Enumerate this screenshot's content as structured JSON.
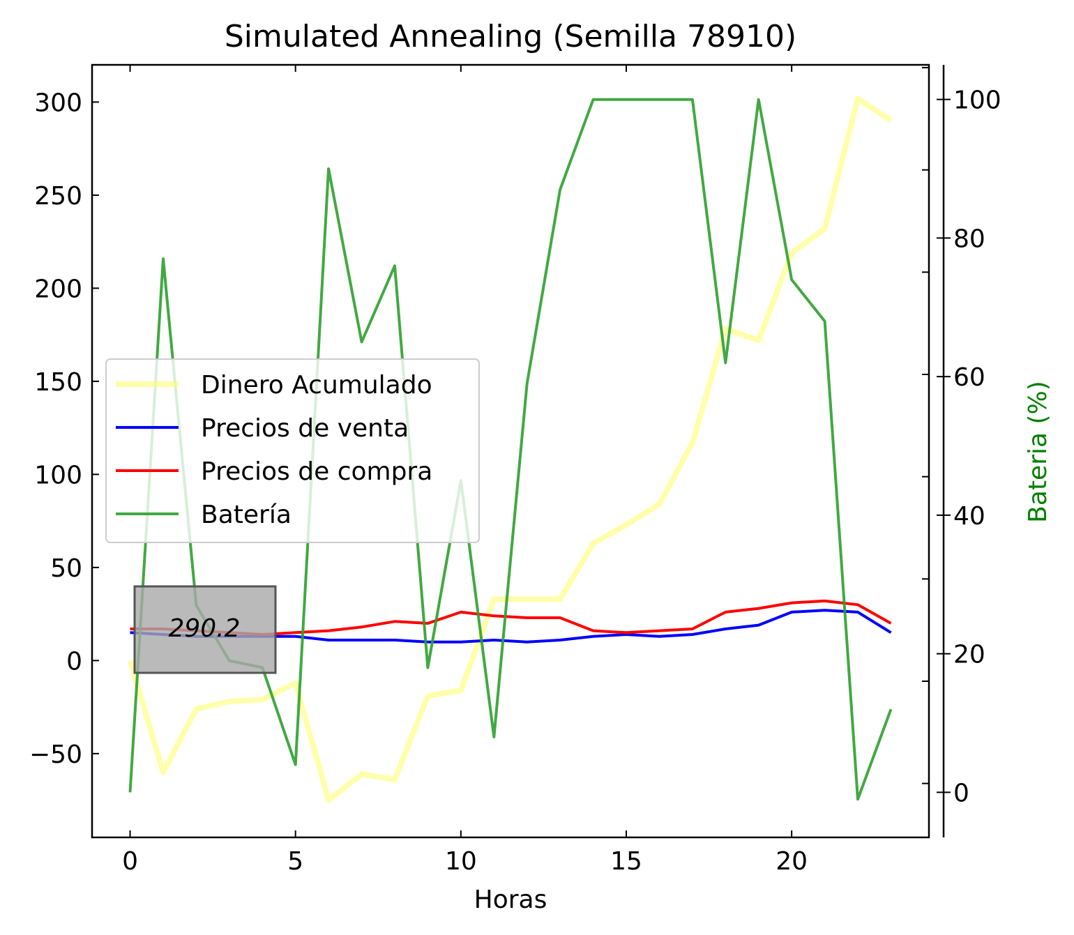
{
  "chart_data": {
    "type": "line",
    "title": "Simulated Annealing (Semilla 78910)",
    "xlabel": "Horas",
    "ylabel": "",
    "y2label": "Bateria (%)",
    "xlim": [
      -1.15,
      24.15
    ],
    "ylim": [
      -95,
      320
    ],
    "y2lim": [
      -6.5,
      105
    ],
    "xticks": [
      0,
      5,
      10,
      15,
      20
    ],
    "yticks": [
      -50,
      0,
      50,
      100,
      150,
      200,
      250,
      300
    ],
    "y2ticks": [
      0,
      20,
      40,
      60,
      80,
      100
    ],
    "x": [
      0,
      1,
      2,
      3,
      4,
      5,
      6,
      7,
      8,
      9,
      10,
      11,
      12,
      13,
      14,
      15,
      16,
      17,
      18,
      19,
      20,
      21,
      22,
      23
    ],
    "series": [
      {
        "name": "Dinero Acumulado",
        "axis": "left",
        "color": "#ffff66",
        "values": [
          0,
          -60,
          -26,
          -22,
          -21,
          -12,
          -75,
          -61,
          -64,
          -19,
          -16,
          33,
          33,
          33,
          63,
          73,
          84,
          117,
          178,
          172,
          219,
          232,
          302,
          290
        ]
      },
      {
        "name": "Precios de venta",
        "axis": "left",
        "color": "#0000ff",
        "values": [
          15,
          14,
          13,
          13,
          13,
          13,
          11,
          11,
          11,
          10,
          10,
          11,
          10,
          11,
          13,
          14,
          13,
          14,
          17,
          19,
          26,
          27,
          26,
          15
        ]
      },
      {
        "name": "Precios de compra",
        "axis": "left",
        "color": "#ff0000",
        "values": [
          17,
          17,
          16,
          15,
          14,
          15,
          16,
          18,
          21,
          20,
          26,
          24,
          23,
          23,
          16,
          15,
          16,
          17,
          26,
          28,
          31,
          32,
          30,
          20
        ]
      },
      {
        "name": "Batería",
        "axis": "right",
        "color": "#2ca02c",
        "values": [
          0,
          77,
          27,
          19,
          18,
          4,
          90,
          65,
          76,
          18,
          45,
          8,
          59,
          87,
          100,
          100,
          100,
          100,
          62,
          100,
          74,
          68,
          -1,
          12
        ]
      }
    ],
    "annotation": {
      "text": "290.2",
      "x": 1.2,
      "y": 17
    },
    "legend_position": "center-left",
    "grid": false
  }
}
